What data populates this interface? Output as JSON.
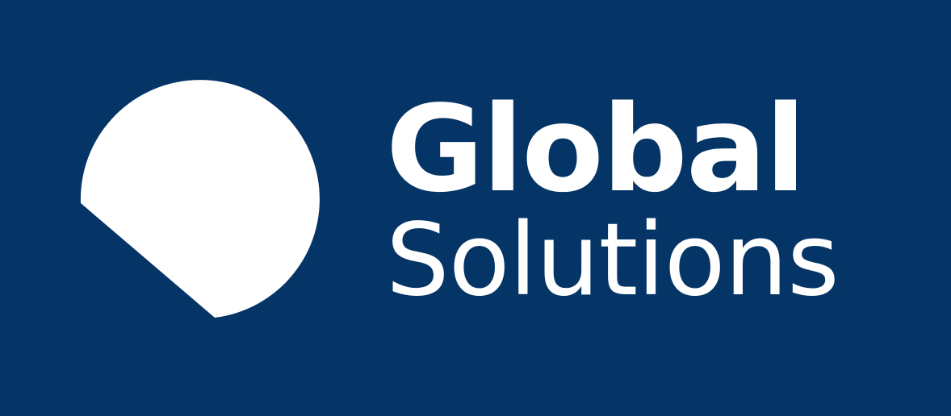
{
  "brand": {
    "line1": "Global",
    "line2": "Solutions",
    "mark_icon": "clipped-circle-icon"
  },
  "colors": {
    "background": "#053467",
    "foreground": "#ffffff"
  }
}
